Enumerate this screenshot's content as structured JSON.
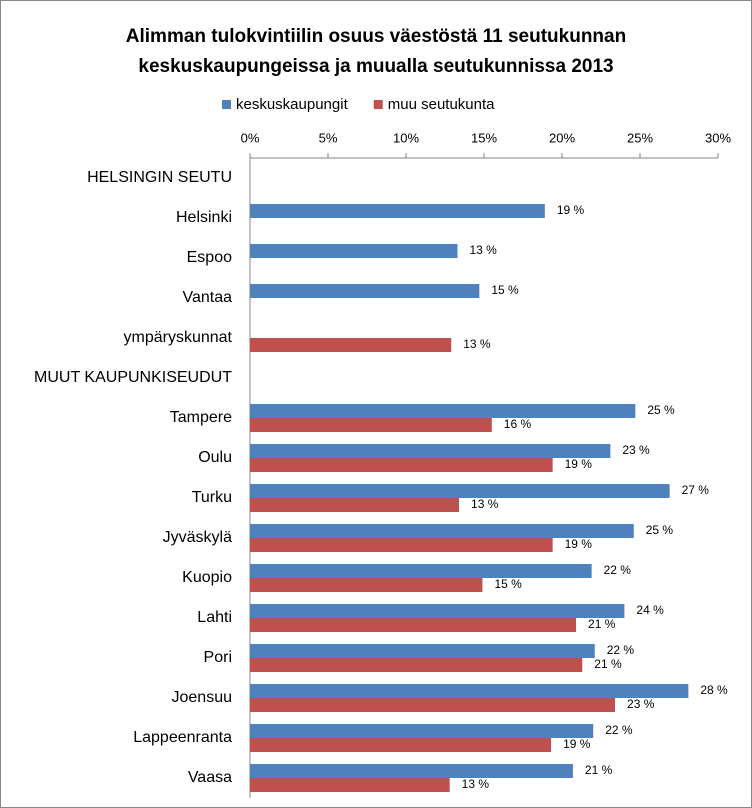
{
  "chart_data": {
    "type": "hbar",
    "title": "Alimman tulokvintiilin osuus väestöstä 11 seutukunnan",
    "subtitle": "keskuskaupungeissa ja muualla seutukunnissa 2013",
    "categories": [
      "HELSINGIN SEUTU",
      "Helsinki",
      "Espoo",
      "Vantaa",
      "ympäryskunnat",
      "MUUT KAUPUNKISEUDUT",
      "Tampere",
      "Oulu",
      "Turku",
      "Jyväskylä",
      "Kuopio",
      "Lahti",
      "Pori",
      "Joensuu",
      "Lappeenranta",
      "Vaasa"
    ],
    "series": [
      {
        "name": "keskuskaupungit",
        "color": "#4f81bd",
        "values": [
          null,
          18.9,
          13.3,
          14.7,
          null,
          null,
          24.7,
          23.1,
          26.9,
          24.6,
          21.9,
          24.0,
          22.1,
          28.1,
          22.0,
          20.7
        ],
        "value_labels": [
          null,
          "19 %",
          "13 %",
          "15 %",
          null,
          null,
          "25 %",
          "23 %",
          "27 %",
          "25 %",
          "22 %",
          "24 %",
          "22 %",
          "28 %",
          "22 %",
          "21 %"
        ]
      },
      {
        "name": "muu seutukunta",
        "color": "#c0504d",
        "values": [
          null,
          null,
          null,
          null,
          12.9,
          null,
          15.5,
          19.4,
          13.4,
          19.4,
          14.9,
          20.9,
          21.3,
          23.4,
          19.3,
          12.8
        ],
        "value_labels": [
          null,
          null,
          null,
          null,
          "13 %",
          null,
          "16 %",
          "19 %",
          "13 %",
          "19 %",
          "15 %",
          "21 %",
          "21 %",
          "23 %",
          "19 %",
          "13 %"
        ]
      }
    ],
    "xlim": [
      0,
      30
    ],
    "xticks": [
      {
        "value": 0,
        "label": "0%"
      },
      {
        "value": 5,
        "label": "5%"
      },
      {
        "value": 10,
        "label": "10%"
      },
      {
        "value": 15,
        "label": "15%"
      },
      {
        "value": 20,
        "label": "20%"
      },
      {
        "value": 25,
        "label": "25%"
      },
      {
        "value": 30,
        "label": "30%"
      }
    ],
    "legend": "top"
  }
}
